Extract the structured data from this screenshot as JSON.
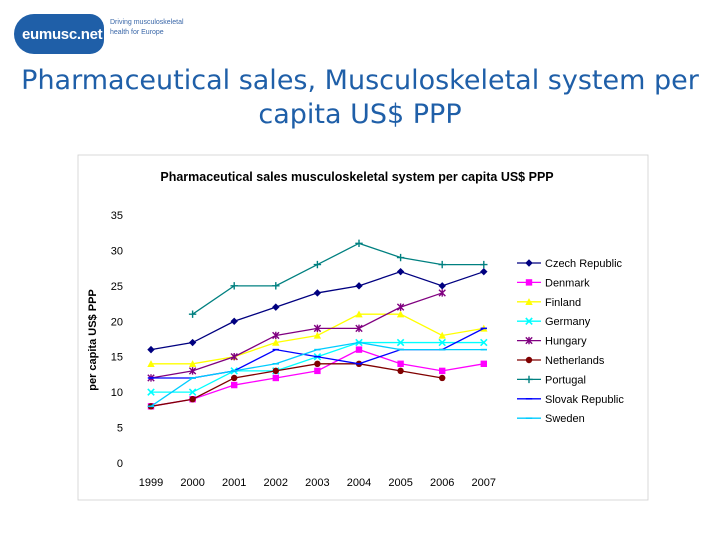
{
  "logo": {
    "name": "eumusc.net",
    "tagline_line1": "Driving musculoskeletal",
    "tagline_line2": "health for Europe"
  },
  "slide_title": "Pharmaceutical sales, Musculoskeletal system per capita US$ PPP",
  "chart_data": {
    "type": "line",
    "title": "Pharmaceutical sales musculoskeletal system per capita US$ PPP",
    "ylabel": "per capita US$ PPP",
    "xlabel": "",
    "categories": [
      "1999",
      "2000",
      "2001",
      "2002",
      "2003",
      "2004",
      "2005",
      "2006",
      "2007"
    ],
    "ylim": [
      0,
      35
    ],
    "yticks": [
      0,
      5,
      10,
      15,
      20,
      25,
      30,
      35
    ],
    "legend_position": "right",
    "series": [
      {
        "name": "Czech Republic",
        "color": "#000080",
        "marker": "diamond",
        "values": [
          16,
          17,
          20,
          22,
          24,
          25,
          27,
          25,
          27
        ]
      },
      {
        "name": "Denmark",
        "color": "#ff00ff",
        "marker": "square",
        "values": [
          8,
          9,
          11,
          12,
          13,
          16,
          14,
          13,
          14
        ]
      },
      {
        "name": "Finland",
        "color": "#ffff00",
        "marker": "triangle",
        "values": [
          14,
          14,
          15,
          17,
          18,
          21,
          21,
          18,
          19
        ]
      },
      {
        "name": "Germany",
        "color": "#00ffff",
        "marker": "x",
        "values": [
          10,
          10,
          13,
          13,
          15,
          17,
          17,
          17,
          17
        ]
      },
      {
        "name": "Hungary",
        "color": "#800080",
        "marker": "star",
        "values": [
          12,
          13,
          15,
          18,
          19,
          19,
          22,
          24,
          null
        ]
      },
      {
        "name": "Netherlands",
        "color": "#800000",
        "marker": "circle",
        "values": [
          8,
          9,
          12,
          13,
          14,
          14,
          13,
          12,
          null
        ]
      },
      {
        "name": "Portugal",
        "color": "#008080",
        "marker": "plus",
        "values": [
          null,
          21,
          25,
          25,
          28,
          31,
          29,
          28,
          28
        ]
      },
      {
        "name": "Slovak Republic",
        "color": "#0000ff",
        "marker": "dash",
        "values": [
          12,
          12,
          13,
          16,
          15,
          14,
          16,
          16,
          19
        ]
      },
      {
        "name": "Sweden",
        "color": "#00ccff",
        "marker": "dash",
        "values": [
          8,
          12,
          13,
          14,
          16,
          17,
          16,
          16,
          16
        ]
      }
    ]
  }
}
